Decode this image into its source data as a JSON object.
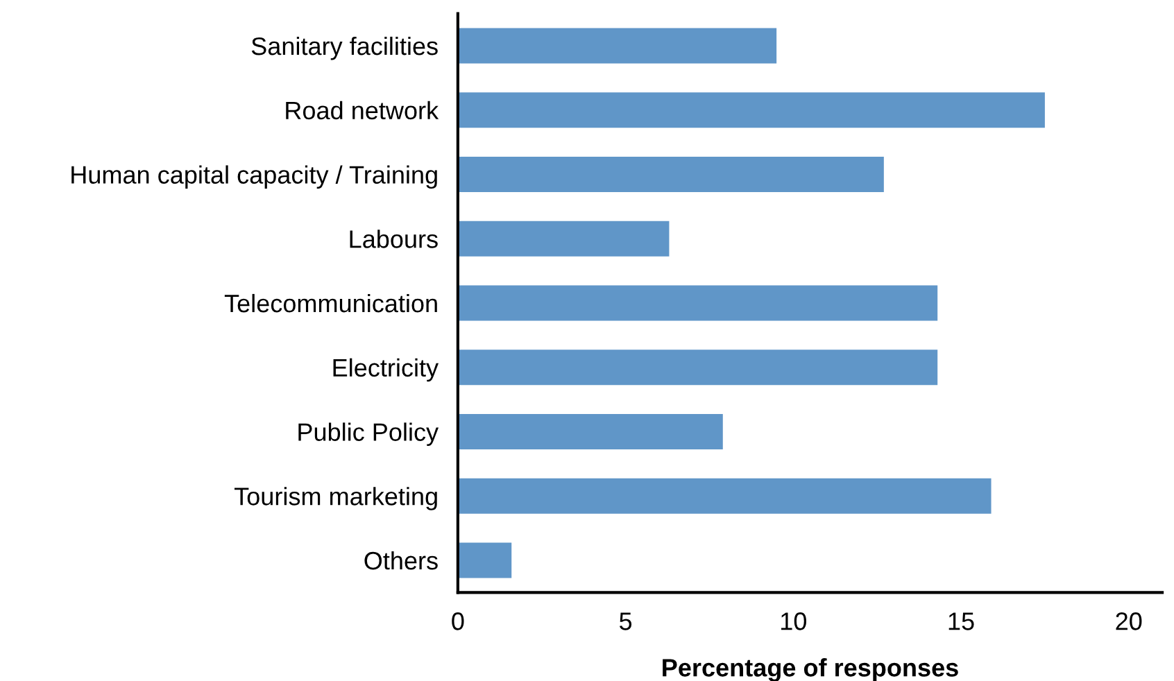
{
  "chart_data": {
    "type": "bar",
    "orientation": "horizontal",
    "xlabel": "Percentage of responses",
    "categories": [
      "Sanitary facilities",
      "Road network",
      "Human capital capacity / Training",
      "Labours",
      "Telecommunication",
      "Electricity",
      "Public Policy",
      "Tourism marketing",
      "Others"
    ],
    "values": [
      9.5,
      17.5,
      12.7,
      6.3,
      14.3,
      14.3,
      7.9,
      15.9,
      1.6
    ],
    "color": "#6096c8",
    "xlim": [
      0,
      21
    ],
    "xticks": [
      0,
      5,
      10,
      15,
      20
    ],
    "grid": false,
    "legend": false
  }
}
